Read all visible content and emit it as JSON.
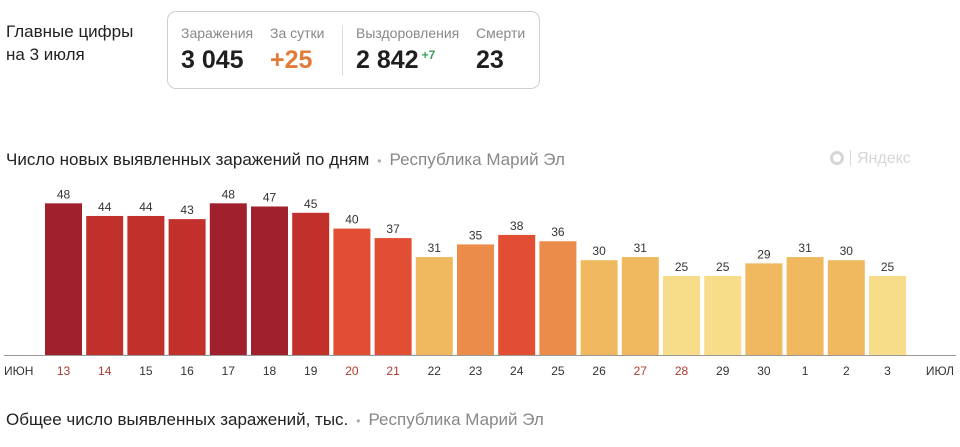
{
  "header": {
    "line1": "Главные цифры",
    "line2": "на 3 июля"
  },
  "stats": {
    "infections_label": "Заражения",
    "infections_value": "3 045",
    "daily_label": "За сутки",
    "daily_value": "+25",
    "recovered_label": "Выздоровления",
    "recovered_value": "2 842",
    "recovered_delta": "+7",
    "deaths_label": "Смерти",
    "deaths_value": "23"
  },
  "chart_section": {
    "title": "Число новых выявленных заражений по дням",
    "separator": "•",
    "region": "Республика Марий Эл",
    "brand": "Яндекс"
  },
  "bottom_section": {
    "title": "Общее число выявленных заражений, тыс.",
    "separator": "•",
    "region": "Республика Марий Эл"
  },
  "chart_data": {
    "type": "bar",
    "title": "Число новых выявленных заражений по дням",
    "categories": [
      "13",
      "14",
      "15",
      "16",
      "17",
      "18",
      "19",
      "20",
      "21",
      "22",
      "23",
      "24",
      "25",
      "26",
      "27",
      "28",
      "29",
      "30",
      "1",
      "2",
      "3"
    ],
    "values": [
      48,
      44,
      44,
      43,
      48,
      47,
      45,
      40,
      37,
      31,
      35,
      38,
      36,
      30,
      31,
      25,
      25,
      29,
      31,
      30,
      25
    ],
    "weekend": [
      true,
      true,
      false,
      false,
      false,
      false,
      false,
      true,
      true,
      false,
      false,
      false,
      false,
      false,
      true,
      true,
      false,
      false,
      false,
      false,
      false
    ],
    "month_start": "ИЮН",
    "month_end": "ИЮЛ",
    "ylim": [
      0,
      50
    ],
    "grid": false,
    "colors": {
      "weekday_label": "#333333",
      "weekend_label": "#b03a2e",
      "baseline": "#999999",
      "scale": [
        "#f7dc8a",
        "#f1b95f",
        "#ec8c4a",
        "#e14e33",
        "#c2302b",
        "#a1202d"
      ]
    }
  }
}
